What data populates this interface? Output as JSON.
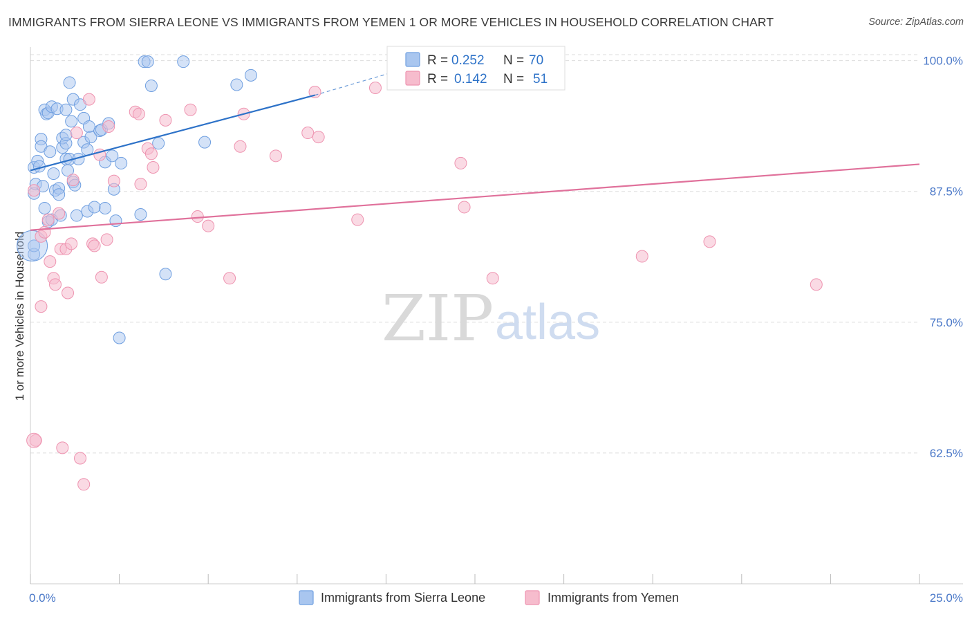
{
  "title": "IMMIGRANTS FROM SIERRA LEONE VS IMMIGRANTS FROM YEMEN 1 OR MORE VEHICLES IN HOUSEHOLD CORRELATION CHART",
  "source": "Source: ZipAtlas.com",
  "watermark": {
    "zip": "ZIP",
    "atlas": "atlas"
  },
  "legend": {
    "r_label": "R =",
    "n_label": "N =",
    "rows": [
      {
        "r": "0.252",
        "n": "70"
      },
      {
        "r": "0.142",
        "n": "51"
      }
    ]
  },
  "colors": {
    "blue_fill": "#a9c6ef",
    "blue_stroke": "#6f9fe0",
    "blue_line": "#2d72c8",
    "pink_fill": "#f6bccd",
    "pink_stroke": "#ee93b0",
    "pink_line": "#e0719b",
    "tick_text": "#4a78c8",
    "grid": "#dddddd"
  },
  "chart_data": {
    "type": "scatter",
    "xlabel": "",
    "ylabel": "1 or more Vehicles in Household",
    "xlim": [
      0,
      25
    ],
    "ylim": [
      50,
      101.3
    ],
    "x_tick_labels": [
      {
        "value": 0,
        "label": "0.0%"
      },
      {
        "value": 25,
        "label": "25.0%"
      }
    ],
    "y_ticks": [
      {
        "value": 62.5,
        "label": "62.5%"
      },
      {
        "value": 75.0,
        "label": "75.0%"
      },
      {
        "value": 87.5,
        "label": "87.5%"
      },
      {
        "value": 100.0,
        "label": "100.0%"
      }
    ],
    "x_minor_ticks": [
      0,
      2.5,
      5,
      7.5,
      10,
      12.5,
      15,
      17.5,
      20,
      22.5,
      25
    ],
    "series": [
      {
        "name": "Immigrants from Sierra Leone",
        "color": "blue",
        "trend": {
          "x0": 0,
          "y0": 89.5,
          "x1": 8,
          "y1": 96.7,
          "dash_x1": 10.5,
          "dash_y1": 99.2
        },
        "points": [
          [
            0.1,
            89.8
          ],
          [
            0.1,
            87.3
          ],
          [
            0.1,
            81.5
          ],
          [
            0.15,
            88.2
          ],
          [
            0.2,
            90.4
          ],
          [
            0.25,
            89.9
          ],
          [
            0.3,
            92.5
          ],
          [
            0.3,
            91.8
          ],
          [
            0.35,
            88.0
          ],
          [
            0.4,
            85.9
          ],
          [
            0.4,
            95.3
          ],
          [
            0.45,
            94.9
          ],
          [
            0.5,
            95.0
          ],
          [
            0.5,
            84.6
          ],
          [
            0.55,
            91.3
          ],
          [
            0.6,
            84.8
          ],
          [
            0.6,
            95.6
          ],
          [
            0.65,
            89.2
          ],
          [
            0.7,
            87.6
          ],
          [
            0.75,
            95.4
          ],
          [
            0.8,
            87.8
          ],
          [
            0.8,
            87.2
          ],
          [
            0.85,
            85.2
          ],
          [
            0.9,
            91.7
          ],
          [
            0.9,
            92.6
          ],
          [
            1.0,
            92.1
          ],
          [
            1.0,
            92.9
          ],
          [
            1.0,
            90.6
          ],
          [
            1.0,
            95.3
          ],
          [
            1.05,
            89.5
          ],
          [
            1.1,
            97.9
          ],
          [
            1.1,
            90.6
          ],
          [
            1.15,
            94.2
          ],
          [
            1.2,
            96.3
          ],
          [
            1.2,
            88.4
          ],
          [
            1.25,
            88.1
          ],
          [
            1.3,
            85.2
          ],
          [
            1.35,
            90.6
          ],
          [
            1.4,
            95.8
          ],
          [
            1.5,
            92.2
          ],
          [
            1.5,
            94.5
          ],
          [
            1.6,
            85.6
          ],
          [
            1.6,
            91.5
          ],
          [
            1.65,
            93.7
          ],
          [
            1.7,
            92.7
          ],
          [
            1.8,
            86.0
          ],
          [
            1.95,
            93.3
          ],
          [
            2.0,
            93.4
          ],
          [
            2.1,
            85.9
          ],
          [
            2.1,
            90.3
          ],
          [
            2.2,
            94.0
          ],
          [
            2.3,
            90.9
          ],
          [
            2.35,
            87.7
          ],
          [
            2.4,
            84.7
          ],
          [
            2.5,
            73.5
          ],
          [
            2.55,
            90.2
          ],
          [
            3.1,
            85.3
          ],
          [
            3.2,
            99.9
          ],
          [
            3.3,
            99.9
          ],
          [
            3.4,
            97.6
          ],
          [
            3.6,
            92.1
          ],
          [
            3.8,
            79.6
          ],
          [
            4.3,
            99.9
          ],
          [
            4.9,
            92.2
          ],
          [
            5.8,
            97.7
          ],
          [
            6.2,
            98.6
          ],
          [
            0.1,
            82.3
          ]
        ],
        "big_point": [
          0.05,
          82.3
        ]
      },
      {
        "name": "Immigrants from Yemen",
        "color": "pink",
        "trend": {
          "x0": 0,
          "y0": 83.8,
          "x1": 25,
          "y1": 90.1
        },
        "points": [
          [
            0.1,
            87.6
          ],
          [
            0.15,
            63.7
          ],
          [
            0.3,
            83.2
          ],
          [
            0.3,
            76.5
          ],
          [
            0.4,
            83.6
          ],
          [
            0.5,
            84.8
          ],
          [
            0.55,
            80.8
          ],
          [
            0.65,
            79.2
          ],
          [
            0.7,
            78.6
          ],
          [
            0.8,
            85.4
          ],
          [
            0.85,
            82.0
          ],
          [
            0.9,
            63.0
          ],
          [
            1.0,
            82.0
          ],
          [
            1.05,
            77.8
          ],
          [
            1.15,
            82.5
          ],
          [
            1.2,
            88.6
          ],
          [
            1.3,
            93.1
          ],
          [
            1.4,
            62.0
          ],
          [
            1.5,
            59.5
          ],
          [
            1.65,
            96.3
          ],
          [
            1.75,
            82.5
          ],
          [
            1.8,
            82.3
          ],
          [
            1.95,
            91.0
          ],
          [
            2.0,
            79.3
          ],
          [
            2.15,
            82.9
          ],
          [
            2.2,
            93.7
          ],
          [
            2.35,
            88.5
          ],
          [
            2.95,
            95.1
          ],
          [
            3.05,
            94.9
          ],
          [
            3.1,
            88.2
          ],
          [
            3.3,
            91.6
          ],
          [
            3.4,
            91.1
          ],
          [
            3.45,
            89.8
          ],
          [
            3.8,
            94.3
          ],
          [
            4.5,
            95.3
          ],
          [
            4.7,
            85.1
          ],
          [
            5.0,
            84.2
          ],
          [
            5.6,
            79.2
          ],
          [
            5.9,
            91.8
          ],
          [
            6.0,
            94.9
          ],
          [
            6.9,
            90.9
          ],
          [
            7.8,
            93.1
          ],
          [
            8.0,
            97.0
          ],
          [
            8.1,
            92.7
          ],
          [
            9.2,
            84.8
          ],
          [
            9.7,
            97.4
          ],
          [
            12.1,
            90.2
          ],
          [
            12.2,
            86.0
          ],
          [
            13.0,
            79.2
          ],
          [
            17.2,
            81.3
          ],
          [
            19.1,
            82.7
          ],
          [
            22.1,
            78.6
          ]
        ]
      }
    ]
  },
  "bottom_legend": [
    {
      "label": "Immigrants from Sierra Leone",
      "color": "blue"
    },
    {
      "label": "Immigrants from Yemen",
      "color": "pink"
    }
  ]
}
